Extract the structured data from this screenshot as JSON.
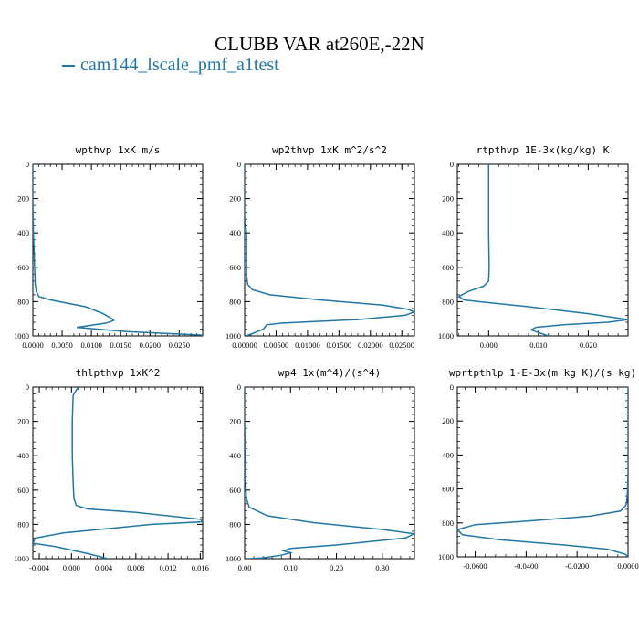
{
  "title": "CLUBB VAR at260E,-22N",
  "legend": [
    {
      "name": "cam144_lscale_pmf_a1test",
      "color": "#1f77a8"
    }
  ],
  "chart_data": [
    {
      "type": "line",
      "title": "wpthvp  1xK m/s",
      "xlim": [
        0,
        0.029
      ],
      "ylim": [
        1000,
        0
      ],
      "xticks": [
        "0.0000",
        "0.0050",
        "0.0100",
        "0.0150",
        "0.0200",
        "0.0250"
      ],
      "xtick_values": [
        0,
        0.005,
        0.01,
        0.015,
        0.02,
        0.025
      ],
      "yticks": [
        "0",
        "200",
        "400",
        "600",
        "800",
        "1000"
      ],
      "ytick_values": [
        0,
        200,
        400,
        600,
        800,
        1000
      ],
      "series": [
        {
          "x": [
            0,
            0,
            0.0001,
            0.0002,
            0.0003,
            0.0004,
            0.0006,
            0.001,
            0.003,
            0.009,
            0.012,
            0.0135,
            0.0138,
            0.0125,
            0.0085,
            0.0075,
            0.016,
            0.029
          ],
          "y": [
            0,
            200,
            400,
            500,
            600,
            700,
            740,
            770,
            790,
            830,
            870,
            900,
            910,
            925,
            945,
            950,
            975,
            995
          ]
        }
      ]
    },
    {
      "type": "line",
      "title": "wp2thvp  1xK m^2/s^2",
      "xlim": [
        0,
        0.027
      ],
      "ylim": [
        1000,
        0
      ],
      "xticks": [
        "0.00000",
        "0.00500",
        "0.01000",
        "0.01500",
        "0.02000",
        "0.02500"
      ],
      "xtick_values": [
        0,
        0.005,
        0.01,
        0.015,
        0.02,
        0.025
      ],
      "yticks": [
        "0",
        "200",
        "400",
        "600",
        "800",
        "1000"
      ],
      "ytick_values": [
        0,
        200,
        400,
        600,
        800,
        1000
      ],
      "series": [
        {
          "x": [
            0,
            0,
            0.0003,
            0.0003,
            0.0003,
            0.0005,
            0.0012,
            0.004,
            0.012,
            0.022,
            0.026,
            0.027,
            0.0255,
            0.018,
            0.006,
            0.0035,
            0.003,
            0.001,
            0.0002
          ],
          "y": [
            0,
            300,
            400,
            500,
            650,
            700,
            730,
            760,
            790,
            820,
            845,
            860,
            880,
            905,
            925,
            935,
            960,
            990,
            1000
          ]
        }
      ]
    },
    {
      "type": "line",
      "title": "rtpthvp   1E-3x(kg/kg) K",
      "xlim": [
        -0.0063,
        0.028
      ],
      "ylim": [
        1000,
        0
      ],
      "xticks": [
        "0.000",
        "0.010",
        "0.020"
      ],
      "xtick_values": [
        0,
        0.01,
        0.02
      ],
      "yticks": [
        "0",
        "200",
        "400",
        "600",
        "800",
        "1000"
      ],
      "ytick_values": [
        0,
        200,
        400,
        600,
        800,
        1000
      ],
      "series": [
        {
          "x": [
            0,
            0,
            0.0001,
            0,
            -0.001,
            -0.004,
            -0.006,
            -0.005,
            -0.002,
            0.008,
            0.02,
            0.028,
            0.024,
            0.015,
            0.0095,
            0.0085,
            0.0105,
            0.012
          ],
          "y": [
            0,
            400,
            600,
            680,
            710,
            740,
            770,
            790,
            800,
            830,
            870,
            905,
            920,
            935,
            950,
            965,
            985,
            1000
          ]
        }
      ]
    },
    {
      "type": "line",
      "title": "thlpthvp   1xK^2",
      "xlim": [
        -0.0048,
        0.0163
      ],
      "ylim": [
        1000,
        0
      ],
      "xticks": [
        "-0.004",
        "0.000",
        "0.004",
        "0.008",
        "0.012",
        "0.016"
      ],
      "xtick_values": [
        -0.004,
        0,
        0.004,
        0.008,
        0.012,
        0.016
      ],
      "yticks": [
        "0",
        "200",
        "400",
        "600",
        "800",
        "1000"
      ],
      "ytick_values": [
        0,
        200,
        400,
        600,
        800,
        1000
      ],
      "series": [
        {
          "x": [
            0.0008,
            0.0002,
            0.0001,
            0.0001,
            0.0002,
            0.0003,
            0.0006,
            0.002,
            0.008,
            0.016,
            0.0163,
            0.01,
            -0.001,
            -0.0045,
            -0.0048,
            -0.002,
            0.002,
            0.0045
          ],
          "y": [
            0,
            50,
            200,
            400,
            550,
            650,
            690,
            710,
            730,
            770,
            785,
            800,
            850,
            880,
            910,
            930,
            970,
            1000
          ]
        }
      ]
    },
    {
      "type": "line",
      "title": "wp4   1x(m^4)/(s^4)",
      "xlim": [
        0,
        0.37
      ],
      "ylim": [
        1000,
        0
      ],
      "xticks": [
        "0.00",
        "0.10",
        "0.20",
        "0.30"
      ],
      "xtick_values": [
        0,
        0.1,
        0.2,
        0.3
      ],
      "yticks": [
        "0",
        "200",
        "400",
        "600",
        "800",
        "1000"
      ],
      "ytick_values": [
        0,
        200,
        400,
        600,
        800,
        1000
      ],
      "series": [
        {
          "x": [
            0,
            0,
            0.001,
            0.002,
            0.001,
            0.004,
            0.01,
            0.05,
            0.15,
            0.3,
            0.37,
            0.35,
            0.2,
            0.1,
            0.085,
            0.1,
            0.08,
            0.04,
            0.01
          ],
          "y": [
            0,
            200,
            300,
            400,
            500,
            650,
            700,
            750,
            790,
            830,
            855,
            880,
            920,
            940,
            955,
            965,
            980,
            995,
            1000
          ]
        }
      ]
    },
    {
      "type": "line",
      "title": "wprtpthlp   1-E-3x(m kg K)/(s kg)",
      "xlim": [
        -0.067,
        0
      ],
      "ylim": [
        1000,
        0
      ],
      "xticks": [
        "-0.0600",
        "-0.0400",
        "-0.0200",
        "0.0000"
      ],
      "xtick_values": [
        -0.06,
        -0.04,
        -0.02,
        0
      ],
      "yticks": [
        "0",
        "200",
        "400",
        "600",
        "800",
        "1000"
      ],
      "ytick_values": [
        0,
        200,
        400,
        600,
        800,
        1000
      ],
      "series": [
        {
          "x": [
            0,
            0,
            -0.0002,
            -0.0005,
            -0.001,
            -0.003,
            -0.015,
            -0.04,
            -0.06,
            -0.067,
            -0.065,
            -0.05,
            -0.025,
            -0.008,
            -0.001,
            0
          ],
          "y": [
            0,
            500,
            620,
            680,
            700,
            730,
            760,
            790,
            810,
            840,
            870,
            900,
            930,
            955,
            985,
            1000
          ]
        }
      ]
    }
  ]
}
